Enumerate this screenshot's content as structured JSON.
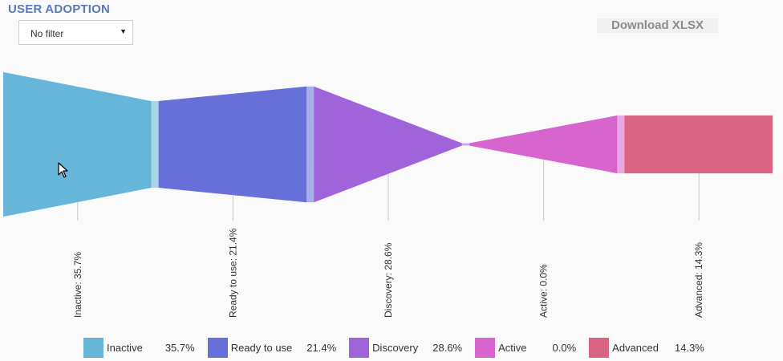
{
  "title": "USER ADOPTION",
  "filter": {
    "selected": "No filter"
  },
  "download_label": "Download XLSX",
  "chart_data": {
    "type": "funnel",
    "stages": [
      {
        "name": "Inactive",
        "value": 35.7,
        "label": "Inactive: 35.7%",
        "pct": "35.7%",
        "color": "#66b6da"
      },
      {
        "name": "Ready to use",
        "value": 21.4,
        "label": "Ready to use: 21.4%",
        "pct": "21.4%",
        "color": "#676fd8"
      },
      {
        "name": "Discovery",
        "value": 28.6,
        "label": "Discovery: 28.6%",
        "pct": "28.6%",
        "color": "#a163d9"
      },
      {
        "name": "Active",
        "value": 0.0,
        "label": "Active: 0.0%",
        "pct": "0.0%",
        "color": "#d865cd"
      },
      {
        "name": "Advanced",
        "value": 14.3,
        "label": "Advanced: 14.3%",
        "pct": "14.3%",
        "color": "#d86383"
      }
    ],
    "legend_position": "bottom"
  }
}
